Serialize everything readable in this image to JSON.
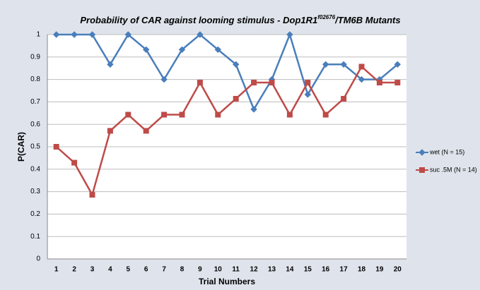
{
  "chart_data": {
    "type": "line",
    "title": [
      "Probability of CAR against looming stimulus - Dop1R1",
      "f02676",
      "/TM6B Mutants"
    ],
    "x_label": "Trial Numbers",
    "y_label": "P(CAR)",
    "categories": [
      "1",
      "2",
      "3",
      "4",
      "5",
      "6",
      "7",
      "8",
      "9",
      "10",
      "11",
      "12",
      "13",
      "14",
      "15",
      "16",
      "17",
      "18",
      "19",
      "20"
    ],
    "series": [
      {
        "name": "wet (N = 15)",
        "color": "#4a7ebb",
        "marker": "diamond",
        "values": [
          1,
          1,
          1,
          0.867,
          1,
          0.933,
          0.8,
          0.933,
          1,
          0.933,
          0.867,
          0.667,
          0.8,
          1,
          0.733,
          0.867,
          0.867,
          0.8,
          0.8,
          0.867
        ]
      },
      {
        "name": "suc .5M (N = 14)",
        "color": "#be4b48",
        "marker": "square",
        "values": [
          0.5,
          0.429,
          0.286,
          0.571,
          0.643,
          0.571,
          0.643,
          0.643,
          0.786,
          0.643,
          0.714,
          0.786,
          0.786,
          0.643,
          0.786,
          0.643,
          0.714,
          0.857,
          0.786,
          0.786
        ]
      }
    ],
    "ylim": [
      0,
      1
    ],
    "yticks": [
      0,
      0.1,
      0.2,
      0.3,
      0.4,
      0.5,
      0.6,
      0.7,
      0.8,
      0.9,
      1
    ],
    "grid": true,
    "legend": "right"
  }
}
